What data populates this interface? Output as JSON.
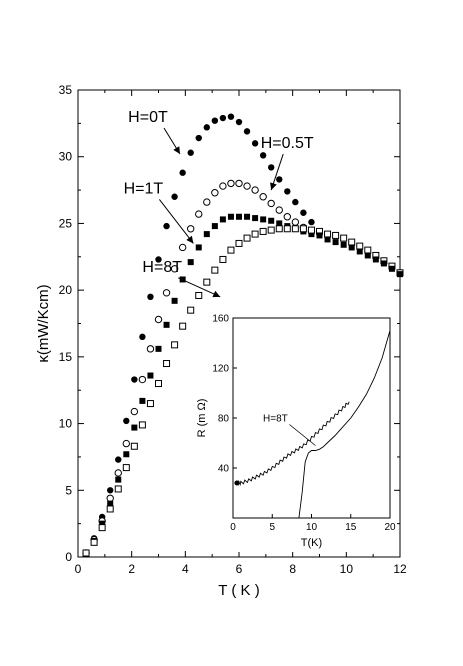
{
  "chart_data": [
    {
      "type": "scatter",
      "title": "",
      "xlabel": "T ( K )",
      "ylabel": "κ(mW/Kcm)",
      "xlim": [
        0,
        12
      ],
      "ylim": [
        0,
        35
      ],
      "x_ticks": [
        0,
        2,
        4,
        6,
        8,
        10,
        12
      ],
      "y_ticks": [
        0,
        5,
        10,
        15,
        20,
        25,
        30,
        35
      ],
      "grid": false,
      "legend": "none",
      "series": [
        {
          "name": "H=0T",
          "marker": "filled-circle",
          "points": [
            [
              0.3,
              0.3
            ],
            [
              0.6,
              1.4
            ],
            [
              0.9,
              3.0
            ],
            [
              1.2,
              5.0
            ],
            [
              1.5,
              7.3
            ],
            [
              1.8,
              10.2
            ],
            [
              2.1,
              13.3
            ],
            [
              2.4,
              16.5
            ],
            [
              2.7,
              19.5
            ],
            [
              3.0,
              22.3
            ],
            [
              3.3,
              24.8
            ],
            [
              3.6,
              27.0
            ],
            [
              3.9,
              28.8
            ],
            [
              4.2,
              30.3
            ],
            [
              4.5,
              31.4
            ],
            [
              4.8,
              32.2
            ],
            [
              5.1,
              32.7
            ],
            [
              5.4,
              32.9
            ],
            [
              5.7,
              33.0
            ],
            [
              6.0,
              32.6
            ],
            [
              6.3,
              31.9
            ],
            [
              6.6,
              31.0
            ],
            [
              6.9,
              30.1
            ],
            [
              7.2,
              29.2
            ],
            [
              7.5,
              28.3
            ],
            [
              7.8,
              27.4
            ],
            [
              8.1,
              26.6
            ],
            [
              8.4,
              25.8
            ],
            [
              8.7,
              25.1
            ]
          ]
        },
        {
          "name": "H=0.5T",
          "marker": "open-circle",
          "points": [
            [
              0.3,
              0.3
            ],
            [
              0.6,
              1.3
            ],
            [
              0.9,
              2.7
            ],
            [
              1.2,
              4.4
            ],
            [
              1.5,
              6.3
            ],
            [
              1.8,
              8.5
            ],
            [
              2.1,
              10.9
            ],
            [
              2.4,
              13.3
            ],
            [
              2.7,
              15.6
            ],
            [
              3.0,
              17.8
            ],
            [
              3.3,
              19.8
            ],
            [
              3.6,
              21.6
            ],
            [
              3.9,
              23.2
            ],
            [
              4.2,
              24.6
            ],
            [
              4.5,
              25.7
            ],
            [
              4.8,
              26.6
            ],
            [
              5.1,
              27.3
            ],
            [
              5.4,
              27.8
            ],
            [
              5.7,
              28.0
            ],
            [
              6.0,
              28.0
            ],
            [
              6.3,
              27.8
            ],
            [
              6.6,
              27.5
            ],
            [
              6.9,
              27.0
            ],
            [
              7.2,
              26.5
            ],
            [
              7.5,
              26.0
            ],
            [
              7.8,
              25.5
            ],
            [
              8.1,
              25.1
            ],
            [
              8.4,
              24.7
            ],
            [
              8.7,
              24.4
            ]
          ]
        },
        {
          "name": "H=1T",
          "marker": "filled-square",
          "points": [
            [
              0.3,
              0.3
            ],
            [
              0.6,
              1.2
            ],
            [
              0.9,
              2.5
            ],
            [
              1.2,
              4.0
            ],
            [
              1.5,
              5.8
            ],
            [
              1.8,
              7.7
            ],
            [
              2.1,
              9.7
            ],
            [
              2.4,
              11.7
            ],
            [
              2.7,
              13.6
            ],
            [
              3.0,
              15.6
            ],
            [
              3.3,
              17.4
            ],
            [
              3.6,
              19.2
            ],
            [
              3.9,
              20.8
            ],
            [
              4.2,
              22.1
            ],
            [
              4.5,
              23.2
            ],
            [
              4.8,
              24.2
            ],
            [
              5.1,
              24.8
            ],
            [
              5.4,
              25.3
            ],
            [
              5.7,
              25.5
            ],
            [
              6.0,
              25.5
            ],
            [
              6.3,
              25.5
            ],
            [
              6.6,
              25.4
            ],
            [
              6.9,
              25.3
            ],
            [
              7.2,
              25.2
            ],
            [
              7.5,
              25.0
            ],
            [
              7.8,
              24.8
            ],
            [
              8.1,
              24.6
            ],
            [
              8.4,
              24.4
            ],
            [
              8.7,
              24.2
            ]
          ]
        },
        {
          "name": "H=8T",
          "marker": "open-square",
          "points": [
            [
              0.3,
              0.3
            ],
            [
              0.6,
              1.1
            ],
            [
              0.9,
              2.2
            ],
            [
              1.2,
              3.6
            ],
            [
              1.5,
              5.1
            ],
            [
              1.8,
              6.7
            ],
            [
              2.1,
              8.3
            ],
            [
              2.4,
              9.9
            ],
            [
              2.7,
              11.5
            ],
            [
              3.0,
              13.0
            ],
            [
              3.3,
              14.5
            ],
            [
              3.6,
              15.9
            ],
            [
              3.9,
              17.3
            ],
            [
              4.2,
              18.5
            ],
            [
              4.5,
              19.6
            ],
            [
              4.8,
              20.6
            ],
            [
              5.1,
              21.5
            ],
            [
              5.4,
              22.3
            ],
            [
              5.7,
              23.0
            ],
            [
              6.0,
              23.5
            ],
            [
              6.3,
              23.9
            ],
            [
              6.6,
              24.2
            ],
            [
              6.9,
              24.4
            ],
            [
              7.2,
              24.5
            ],
            [
              7.5,
              24.6
            ],
            [
              7.8,
              24.6
            ],
            [
              8.1,
              24.6
            ],
            [
              8.4,
              24.6
            ],
            [
              8.7,
              24.5
            ],
            [
              9.0,
              24.4
            ],
            [
              9.3,
              24.2
            ],
            [
              9.6,
              24.1
            ],
            [
              9.9,
              23.9
            ],
            [
              10.2,
              23.6
            ],
            [
              10.5,
              23.3
            ],
            [
              10.8,
              23.0
            ],
            [
              11.1,
              22.6
            ],
            [
              11.4,
              22.2
            ],
            [
              11.7,
              21.8
            ],
            [
              12.0,
              21.3
            ]
          ]
        },
        {
          "name": "",
          "marker": "filled-square",
          "points": [
            [
              9.0,
              24.1
            ],
            [
              9.3,
              23.8
            ],
            [
              9.6,
              23.6
            ],
            [
              9.9,
              23.4
            ],
            [
              10.2,
              23.2
            ],
            [
              10.5,
              22.9
            ],
            [
              10.8,
              22.6
            ],
            [
              11.1,
              22.3
            ],
            [
              11.4,
              22.0
            ],
            [
              11.7,
              21.6
            ],
            [
              12.0,
              21.2
            ]
          ]
        }
      ],
      "annotations": [
        {
          "text": "H=0T",
          "point_to": [
            3.8,
            30.2
          ]
        },
        {
          "text": "H=0.5T",
          "point_to": [
            7.2,
            27.5
          ]
        },
        {
          "text": "H=1T",
          "point_to": [
            4.3,
            23.5
          ]
        },
        {
          "text": "H=8T",
          "point_to": [
            5.3,
            19.5
          ]
        }
      ]
    },
    {
      "type": "line",
      "inset": true,
      "title": "",
      "xlabel": "T(K)",
      "ylabel": "R (m Ω)",
      "xlim": [
        0,
        20
      ],
      "ylim": [
        0,
        160
      ],
      "x_ticks": [
        0,
        5,
        10,
        15,
        20
      ],
      "y_ticks": [
        40,
        80,
        120,
        160
      ],
      "grid": false,
      "series": [
        {
          "name": "",
          "style": "thin-line",
          "points": [
            [
              8.4,
              0
            ],
            [
              8.8,
              20
            ],
            [
              9.2,
              45
            ],
            [
              9.6,
              52
            ],
            [
              10.0,
              54
            ],
            [
              10.5,
              54
            ],
            [
              11.0,
              55
            ],
            [
              11.5,
              57
            ],
            [
              12.0,
              60
            ],
            [
              13.0,
              66
            ],
            [
              14.0,
              73
            ],
            [
              15.0,
              80
            ],
            [
              16.0,
              89
            ],
            [
              17.0,
              99
            ],
            [
              18.0,
              112
            ],
            [
              19.0,
              128
            ],
            [
              20.0,
              150
            ]
          ]
        },
        {
          "name": "H=8T",
          "style": "noisy-line",
          "points": [
            [
              0.5,
              28
            ],
            [
              1.0,
              28
            ],
            [
              2.0,
              30
            ],
            [
              3.0,
              33
            ],
            [
              4.0,
              36
            ],
            [
              5.0,
              40
            ],
            [
              6.0,
              45
            ],
            [
              7.0,
              50
            ],
            [
              8.0,
              54
            ],
            [
              9.0,
              58
            ],
            [
              10.0,
              64
            ],
            [
              11.0,
              70
            ],
            [
              12.0,
              76
            ],
            [
              13.0,
              82
            ],
            [
              14.0,
              88
            ],
            [
              14.8,
              93
            ]
          ]
        }
      ],
      "annotations": [
        {
          "text": "H=8T",
          "point_to": [
            10.5,
            58
          ]
        }
      ]
    }
  ]
}
